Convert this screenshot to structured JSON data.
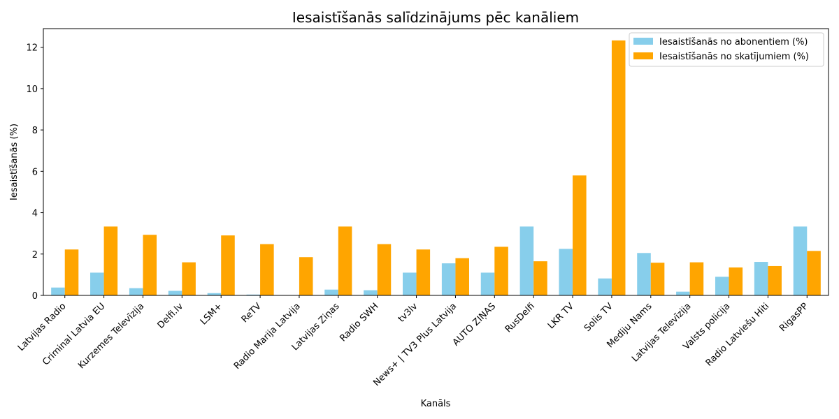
{
  "chart_data": {
    "type": "bar",
    "title": "Iesaistīšanās salīdzinājums pēc kanāliem",
    "xlabel": "Kanāls",
    "ylabel": "Iesaistīšanās (%)",
    "ylim": [
      0,
      12.9
    ],
    "yticks": [
      0,
      2,
      4,
      6,
      8,
      10,
      12
    ],
    "grid": false,
    "legend_position": "top-right",
    "categories": [
      "Latvijas Radio",
      "Criminal Latvia EU",
      "Kurzemes Televīzija",
      "Delfi.lv",
      "LSM+",
      "ReTV",
      "Radio Marija Latvija",
      "Latvijas Ziņas",
      "Radio SWH",
      "tv3lv",
      "News+ | TV3 Plus Latvija",
      "AUTO ZIŅAS",
      "RusDelfi",
      "LKR TV",
      "Solis TV",
      "Mediju Nams",
      "Latvijas Televīzija",
      "Valsts policija",
      "Radio Latviešu Hiti",
      "RigasPP"
    ],
    "series": [
      {
        "name": "Iesaistīšanās no abonentiem (%)",
        "color": "#87CEEB",
        "values": [
          0.38,
          1.1,
          0.35,
          0.22,
          0.11,
          0.04,
          0.01,
          0.28,
          0.25,
          1.1,
          1.55,
          1.1,
          3.33,
          2.25,
          0.82,
          2.05,
          0.18,
          0.9,
          1.62,
          3.33
        ]
      },
      {
        "name": "Iesaistīšanās no skatījumiem (%)",
        "color": "#FFA500",
        "values": [
          2.22,
          3.33,
          2.93,
          1.6,
          2.9,
          2.48,
          1.85,
          3.33,
          2.48,
          2.22,
          1.8,
          2.35,
          1.65,
          5.8,
          12.33,
          1.58,
          1.6,
          1.35,
          1.42,
          2.15
        ]
      }
    ]
  }
}
